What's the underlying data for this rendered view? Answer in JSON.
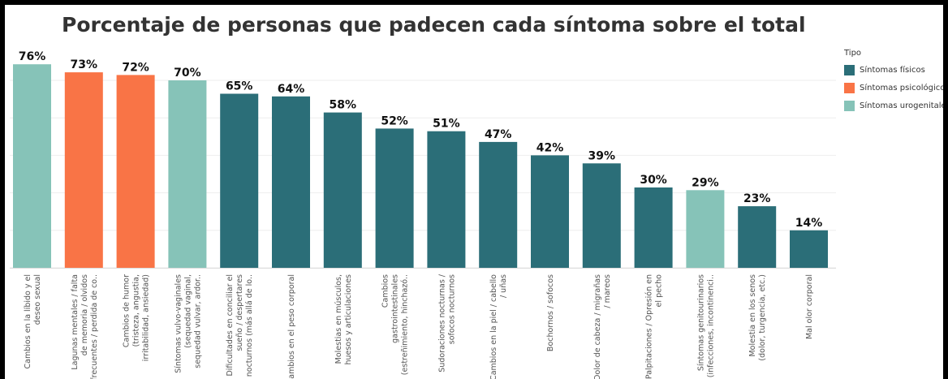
{
  "chart_data": {
    "type": "bar",
    "title": "Porcentaje de personas que padecen cada síntoma sobre el total",
    "legend": {
      "title": "Tipo",
      "placement": "top-right",
      "entries": [
        {
          "name": "Síntomas físicos",
          "color": "#2b6e78"
        },
        {
          "name": "Síntomas psicológicos",
          "color": "#f97446"
        },
        {
          "name": "Síntomas urogenitales",
          "color": "#86c3b8"
        }
      ]
    },
    "categories": [
      "Cambios en la líbido y el deseo sexual",
      "Lagunas mentales / falta de memoria / olvidos frecuentes / perdida de co..",
      "Cambios de humor (tristeza, angustia, irritabilidad, ansiedad)",
      "Síntomas vulvo-vaginales (sequedad vaginal, sequedad vulvar, ardor..",
      "Dificultades en conciliar el sueño / despertares nocturnos (más allá de lo..",
      "Cambios en el peso corporal",
      "Molestias en músculos, huesos y articulaciones",
      "Cambios gastrointestinales (estreñimiento, hinchazó..",
      "Sudoraciones nocturnas / sofocos nocturnos",
      "Cambios en la piel / cabello / uñas",
      "Bochornos / sofocos",
      "Dolor de cabeza / migrañas / mareos",
      "Palpitaciones / Opresión en el pecho",
      "Síntomas genitourinarios (infecciones, incontinenci..",
      "Molestia en los senos (dolor, turgencia, etc.)",
      "Mal olor corporal"
    ],
    "tick_lines": [
      [
        "Cambios en la líbido y el",
        "deseo sexual"
      ],
      [
        "Lagunas mentales / falta",
        "de memoria / olvidos",
        "frecuentes / perdida de co.."
      ],
      [
        "Cambios de humor",
        "(tristeza, angustia,",
        "irritabilidad, ansiedad)"
      ],
      [
        "Síntomas vulvo-vaginales",
        "(sequedad vaginal,",
        "sequedad vulvar, ardor.."
      ],
      [
        "Dificultades en conciliar el",
        "sueño / despertares",
        "nocturnos (más allá de lo.."
      ],
      [
        "Cambios en el peso corporal"
      ],
      [
        "Molestias en músculos,",
        "huesos y articulaciones"
      ],
      [
        "Cambios",
        "gastrointestinales",
        "(estreñimiento, hinchazó.."
      ],
      [
        "Sudoraciones nocturnas /",
        "sofocos nocturnos"
      ],
      [
        "Cambios en la piel / cabello",
        "/ uñas"
      ],
      [
        "Bochornos / sofocos"
      ],
      [
        "Dolor de cabeza / migrañas",
        "/ mareos"
      ],
      [
        "Palpitaciones / Opresión en",
        "el pecho"
      ],
      [
        "Síntomas genitourinarios",
        "(infecciones, incontinenci.."
      ],
      [
        "Molestia en los senos",
        "(dolor, turgencia, etc.)"
      ],
      [
        "Mal olor corporal"
      ]
    ],
    "values": [
      76,
      73,
      72,
      70,
      65,
      64,
      58,
      52,
      51,
      47,
      42,
      39,
      30,
      29,
      23,
      14
    ],
    "data_labels": [
      "76%",
      "73%",
      "72%",
      "70%",
      "65%",
      "64%",
      "58%",
      "52%",
      "51%",
      "47%",
      "42%",
      "39%",
      "30%",
      "29%",
      "23%",
      "14%"
    ],
    "types": [
      "Síntomas urogenitales",
      "Síntomas psicológicos",
      "Síntomas psicológicos",
      "Síntomas urogenitales",
      "Síntomas físicos",
      "Síntomas físicos",
      "Síntomas físicos",
      "Síntomas físicos",
      "Síntomas físicos",
      "Síntomas físicos",
      "Síntomas físicos",
      "Síntomas físicos",
      "Síntomas físicos",
      "Síntomas urogenitales",
      "Síntomas físicos",
      "Síntomas físicos"
    ],
    "xlabel": "",
    "ylabel": "",
    "ylim": [
      0,
      80
    ],
    "grid": true
  }
}
